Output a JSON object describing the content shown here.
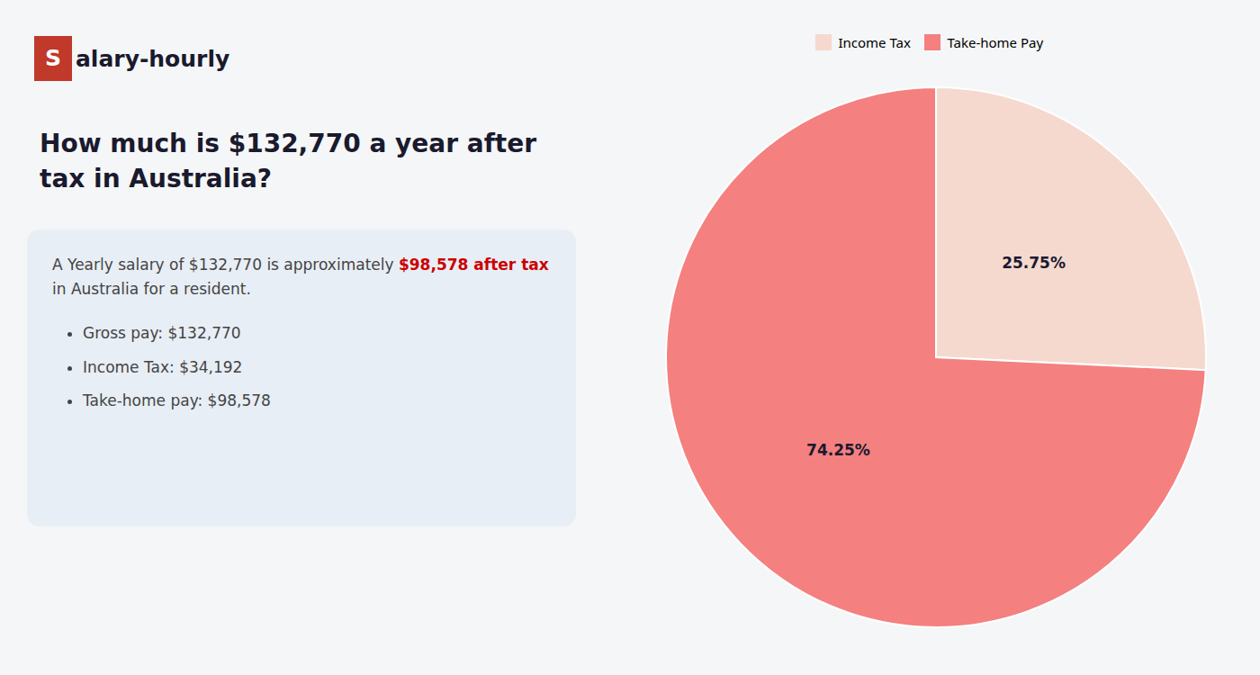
{
  "chart_data": {
    "type": "pie",
    "title": "How much is $132,770 a year after tax in Australia?",
    "logo": [
      "S",
      "alary-hourly"
    ],
    "info_text": [
      "A Yearly salary of $132,770 is approximately ",
      "$98,578 after tax",
      "in Australia for a resident."
    ],
    "bullets": [
      "Gross pay: $132,770",
      "Income Tax: $34,192",
      "Take-home pay: $98,578"
    ],
    "categories": [
      "Income Tax",
      "Take-home Pay"
    ],
    "values": [
      25.75,
      74.25
    ],
    "value_labels": [
      "25.75%",
      "74.25%"
    ],
    "data_labels": true,
    "colors": [
      "#f5d9cf",
      "#f48080"
    ],
    "legend": "top"
  }
}
